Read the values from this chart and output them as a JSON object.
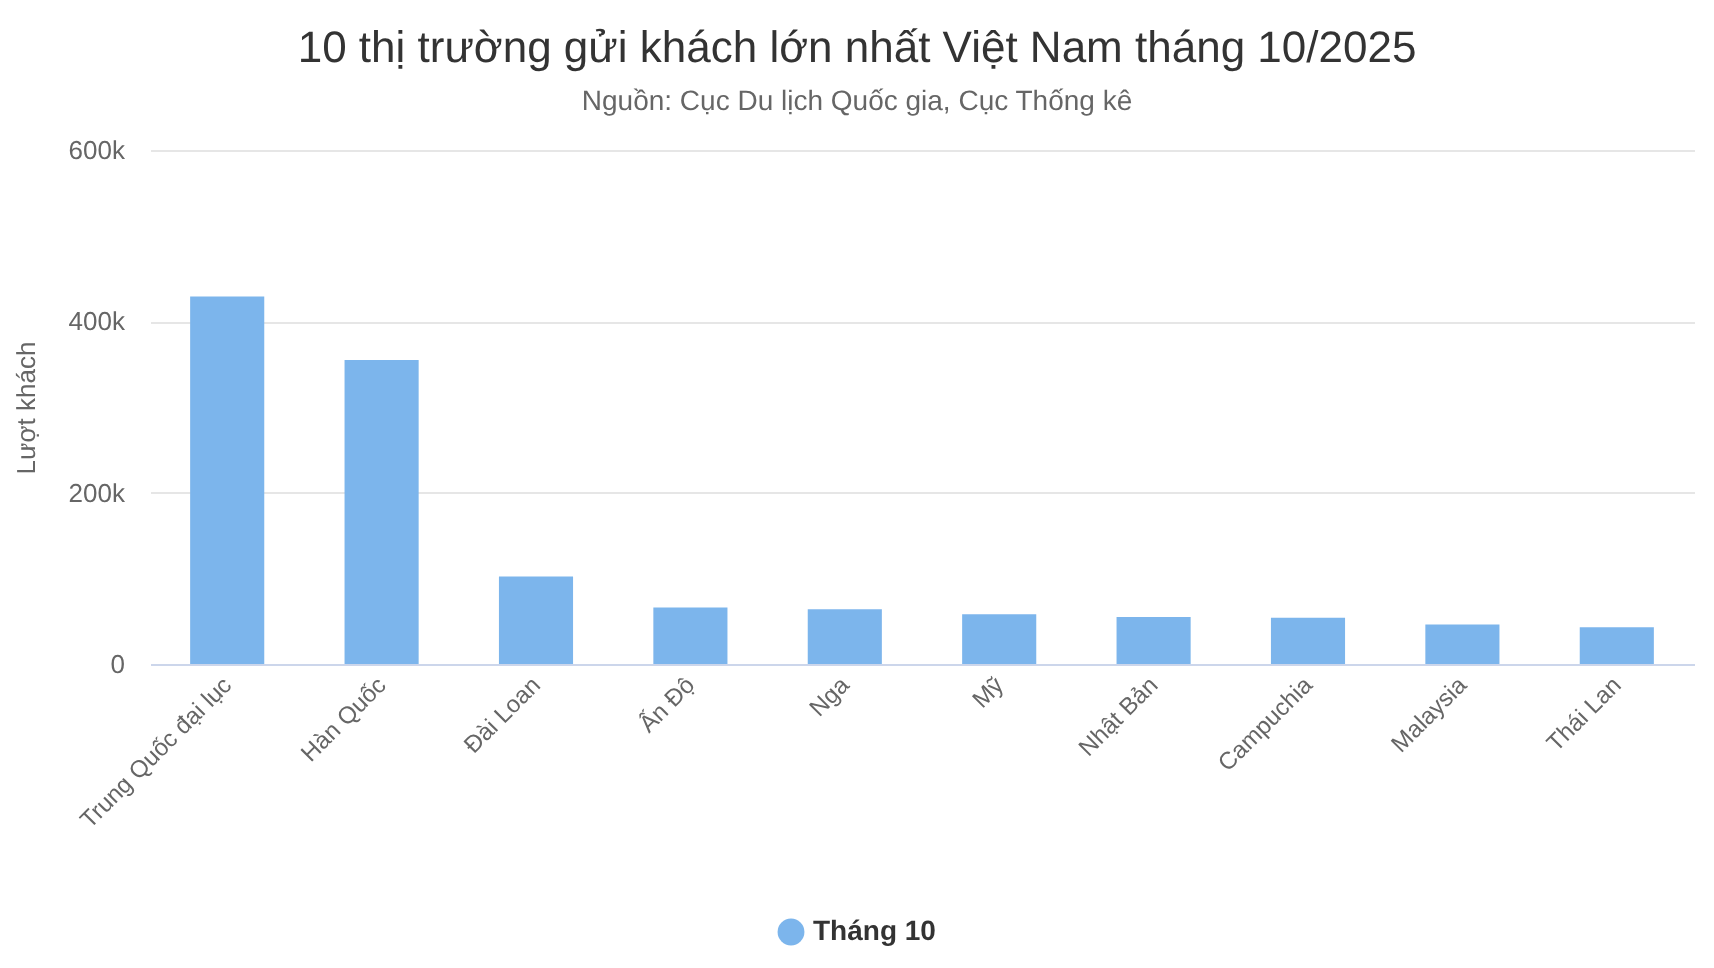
{
  "chart_data": {
    "type": "bar",
    "title": "10 thị trường gửi khách lớn nhất Việt Nam tháng 10/2025",
    "subtitle": "Nguồn: Cục Du lịch Quốc gia, Cục Thống kê",
    "ylabel": "Lượt khách",
    "categories": [
      "Trung Quốc đại lục",
      "Hàn Quốc",
      "Đài Loan",
      "Ấn Độ",
      "Nga",
      "Mỹ",
      "Nhật Bản",
      "Campuchia",
      "Malaysia",
      "Thái Lan"
    ],
    "series": [
      {
        "name": "Tháng 10",
        "color": "#7cb5ec",
        "values": [
          429000,
          355000,
          102000,
          66000,
          64000,
          58000,
          55000,
          54000,
          46000,
          43000
        ]
      }
    ],
    "ylim": [
      0,
      600000
    ],
    "yticks": [
      0,
      {
        "value": 200000,
        "label": "200k"
      },
      {
        "value": 400000,
        "label": "400k"
      },
      {
        "value": 600000,
        "label": "600k"
      }
    ],
    "grid": "y",
    "legend": "bottom"
  }
}
